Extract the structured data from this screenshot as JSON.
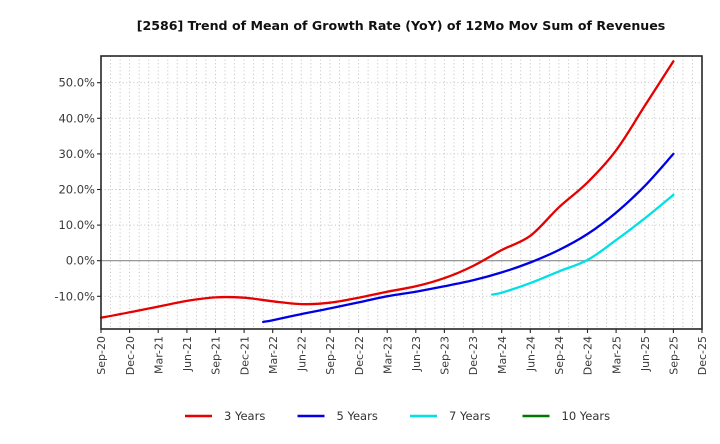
{
  "title": "[2586]  Trend of Mean of Growth Rate (YoY) of 12Mo Mov Sum of Revenues",
  "colors": {
    "series_3y": "#e60000",
    "series_5y": "#0000e6",
    "series_7y": "#00e0e6",
    "series_10y": "#007700",
    "grid": "#bbbbbb",
    "zero_line": "#8c8c8c",
    "border": "#262626",
    "tick_text": "#3a3a3a",
    "title_text": "#111111"
  },
  "chart_data": {
    "type": "line",
    "title": "[2586]  Trend of Mean of Growth Rate (YoY) of 12Mo Mov Sum of Revenues",
    "xlabel": "",
    "ylabel": "",
    "x_unit": "months since Sep-2020",
    "xlim_months": [
      0,
      63
    ],
    "ylim": [
      -19.2,
      57.5
    ],
    "grid": true,
    "x_tick_labels": [
      "Sep-20",
      "Dec-20",
      "Mar-21",
      "Jun-21",
      "Sep-21",
      "Dec-21",
      "Mar-22",
      "Jun-22",
      "Sep-22",
      "Dec-22",
      "Mar-23",
      "Jun-23",
      "Sep-23",
      "Dec-23",
      "Mar-24",
      "Jun-24",
      "Sep-24",
      "Dec-24",
      "Mar-25",
      "Jun-25",
      "Sep-25",
      "Dec-25"
    ],
    "x_tick_months": [
      0,
      3,
      6,
      9,
      12,
      15,
      18,
      21,
      24,
      27,
      30,
      33,
      36,
      39,
      42,
      45,
      48,
      51,
      54,
      57,
      60,
      63
    ],
    "y_ticks": [
      {
        "value": 50,
        "label": "50.0%"
      },
      {
        "value": 40,
        "label": "40.0%"
      },
      {
        "value": 30,
        "label": "30.0%"
      },
      {
        "value": 20,
        "label": "20.0%"
      },
      {
        "value": 10,
        "label": "10.0%"
      },
      {
        "value": 0,
        "label": "0.0%"
      },
      {
        "value": -10,
        "label": "-10.0%"
      }
    ],
    "legend_position": "bottom-center",
    "series": [
      {
        "name": "7 Years",
        "color": "#00e0e6",
        "months": [
          41,
          42,
          45,
          48,
          51,
          54,
          57,
          60
        ],
        "values": [
          -9.5,
          -9.0,
          -6.3,
          -3.0,
          0.2,
          5.8,
          11.9,
          18.5
        ]
      },
      {
        "name": "5 Years",
        "color": "#0000e6",
        "months": [
          17,
          18,
          21,
          24,
          27,
          30,
          33,
          36,
          39,
          42,
          45,
          48,
          51,
          54,
          57,
          60
        ],
        "values": [
          -17.2,
          -16.7,
          -15.0,
          -13.4,
          -11.7,
          -10.0,
          -8.7,
          -7.2,
          -5.5,
          -3.3,
          -0.5,
          3.0,
          7.5,
          13.5,
          21.0,
          30.0
        ]
      },
      {
        "name": "3 Years",
        "color": "#e60000",
        "months": [
          0,
          3,
          6,
          9,
          12,
          15,
          18,
          21,
          24,
          27,
          30,
          33,
          36,
          39,
          42,
          45,
          48,
          51,
          54,
          57,
          60
        ],
        "values": [
          -16.0,
          -14.5,
          -12.9,
          -11.3,
          -10.3,
          -10.4,
          -11.4,
          -12.2,
          -11.8,
          -10.4,
          -8.7,
          -7.2,
          -4.9,
          -1.5,
          3.0,
          7.0,
          15.0,
          22.0,
          31.0,
          43.5,
          56.0
        ]
      },
      {
        "name": "10 Years",
        "color": "#007700",
        "months": [],
        "values": []
      }
    ],
    "legend_order": [
      "3 Years",
      "5 Years",
      "7 Years",
      "10 Years"
    ]
  }
}
